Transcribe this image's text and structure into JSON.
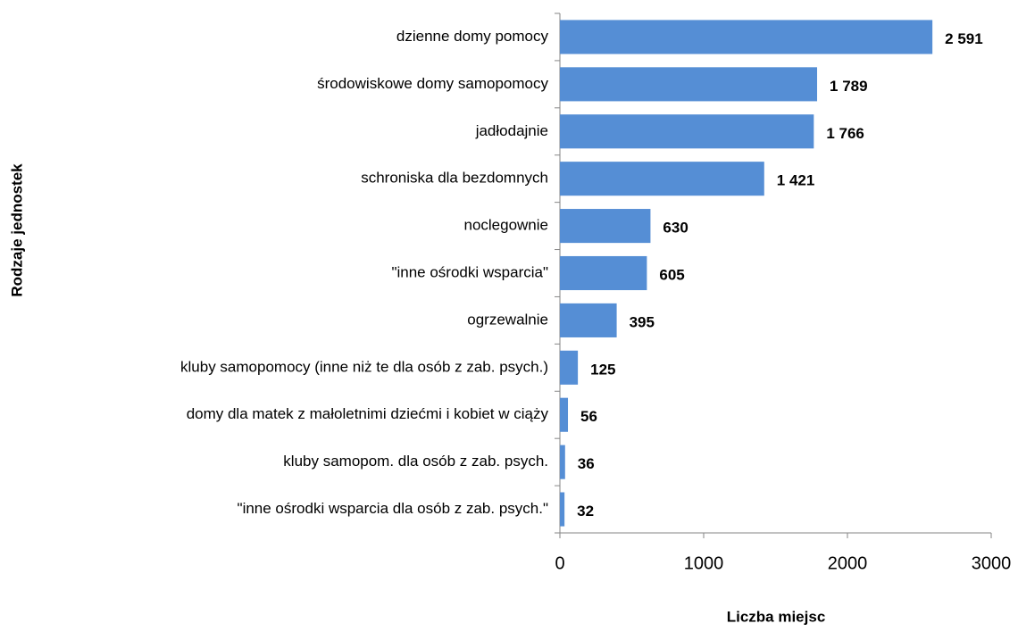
{
  "chart_data": {
    "type": "bar",
    "x_label": "Liczba miejsc",
    "y_label": "Rodzaje jednostek",
    "categories": [
      "dzienne domy pomocy",
      "środowiskowe domy samopomocy",
      "jadłodajnie",
      "schroniska dla bezdomnych",
      "noclegownie",
      "\"inne ośrodki wsparcia\"",
      "ogrzewalnie",
      "kluby samopomocy (inne niż te dla osób z zab. psych.)",
      "domy dla matek z małoletnimi dziećmi i kobiet w ciąży",
      "kluby samopom. dla osób z zab. psych.",
      "\"inne ośrodki wsparcia dla osób z zab. psych.\""
    ],
    "values": [
      2591,
      1789,
      1766,
      1421,
      630,
      605,
      395,
      125,
      56,
      36,
      32
    ],
    "value_labels": [
      "2 591",
      "1 789",
      "1 766",
      "1 421",
      "630",
      "605",
      "395",
      "125",
      "56",
      "36",
      "32"
    ],
    "color": "#558ed5",
    "xlim": [
      0,
      3000
    ],
    "xticks": [
      0,
      1000,
      2000,
      3000
    ]
  }
}
